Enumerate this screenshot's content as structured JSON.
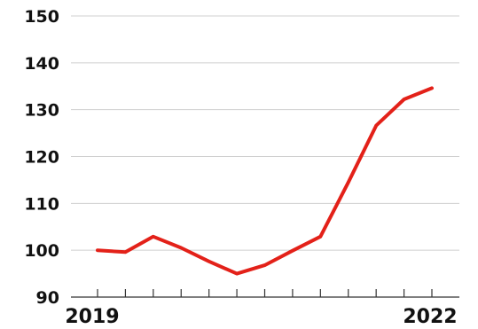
{
  "chart_data": {
    "type": "line",
    "title": "",
    "xlabel": "",
    "ylabel": "",
    "ylim": [
      90,
      150
    ],
    "yticks": [
      90,
      100,
      110,
      120,
      130,
      140,
      150
    ],
    "x_tick_count": 13,
    "x_labels": [
      {
        "index": 0,
        "text": "2019"
      },
      {
        "index": 12,
        "text": "2022"
      }
    ],
    "grid": true,
    "legend": "none",
    "colors": {
      "series": "#e32119",
      "grid": "#cfcfcf",
      "axis": "#333333",
      "text": "#111111"
    },
    "series": [
      {
        "values": [
          100,
          99.6,
          102.9,
          100.5,
          97.6,
          95,
          96.8,
          99.9,
          102.9,
          114.5,
          126.6,
          132.2,
          134.6
        ]
      }
    ]
  }
}
